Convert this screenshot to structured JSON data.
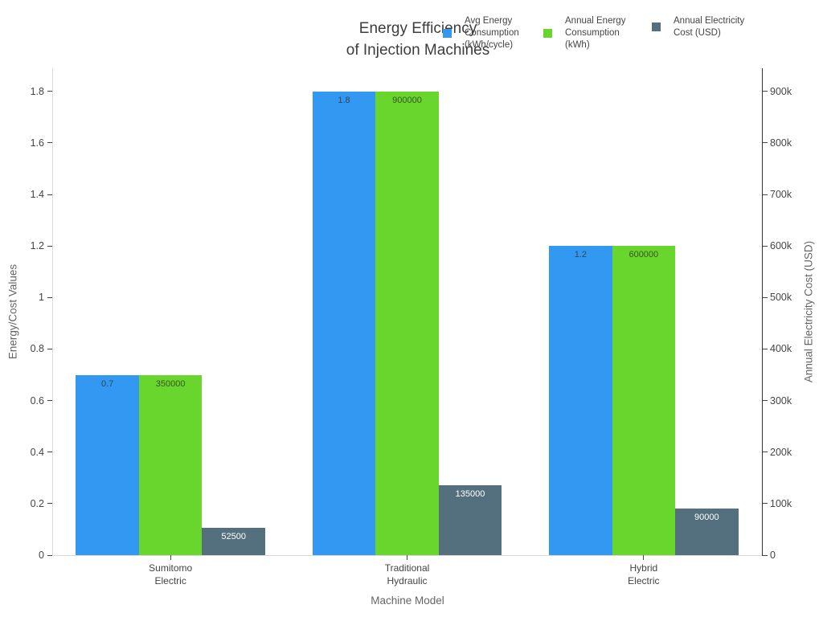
{
  "title": {
    "line1": "Energy Efficiency",
    "line2": "of Injection Machines"
  },
  "legend": {
    "items": [
      {
        "label": "Avg Energy\nConsumption\n(kWh/cycle)",
        "color": "#3398f2"
      },
      {
        "label": "Annual Energy\nConsumption\n(kWh)",
        "color": "#68d62c"
      },
      {
        "label": "Annual Electricity\nCost (USD)",
        "color": "#54707e"
      }
    ]
  },
  "chart_data": {
    "type": "bar",
    "title": "Energy Efficiency of Injection Machines",
    "categories": [
      "Sumitomo\nElectric",
      "Traditional\nHydraulic",
      "Hybrid\nElectric"
    ],
    "xlabel": "Machine Model",
    "ylabel_left": "Energy/Cost Values",
    "ylabel_right": "Annual Electricity Cost (USD)",
    "grid": false,
    "legend_position": "top-right-horizontal",
    "left_axis": {
      "range": [
        0,
        1.89
      ],
      "ticks": [
        0,
        0.2,
        0.4,
        0.6,
        0.8,
        1,
        1.2,
        1.4,
        1.6,
        1.8
      ],
      "tick_labels": [
        "0",
        "0.2",
        "0.4",
        "0.6",
        "0.8",
        "1",
        "1.2",
        "1.4",
        "1.6",
        "1.8"
      ]
    },
    "right_axis": {
      "range": [
        0,
        945000
      ],
      "ticks": [
        0,
        100000,
        200000,
        300000,
        400000,
        500000,
        600000,
        700000,
        800000,
        900000
      ],
      "tick_labels": [
        "0",
        "100k",
        "200k",
        "300k",
        "400k",
        "500k",
        "600k",
        "700k",
        "800k",
        "900k"
      ]
    },
    "series": [
      {
        "name": "Avg Energy Consumption (kWh/cycle)",
        "axis": "left",
        "color": "#3398f2",
        "values": [
          0.7,
          1.8,
          1.2
        ],
        "value_labels": [
          "0.7",
          "1.8",
          "1.2"
        ],
        "label_color": "#344753"
      },
      {
        "name": "Annual Energy Consumption (kWh)",
        "axis": "right",
        "color": "#68d62c",
        "values": [
          350000,
          900000,
          600000
        ],
        "value_labels": [
          "350000",
          "900000",
          "600000"
        ],
        "label_color": "#3d5222"
      },
      {
        "name": "Annual Electricity Cost (USD)",
        "axis": "right",
        "color": "#54707e",
        "values": [
          52500,
          135000,
          90000
        ],
        "value_labels": [
          "52500",
          "135000",
          "90000"
        ],
        "label_color": "#ffffff"
      }
    ]
  }
}
